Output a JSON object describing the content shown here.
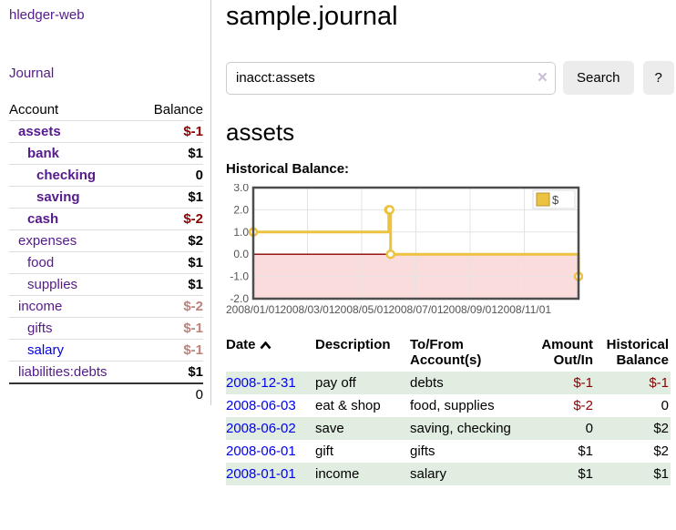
{
  "app": {
    "brand": "hledger-web",
    "nav_journal": "Journal"
  },
  "sidebar": {
    "accounts_header": {
      "account": "Account",
      "balance": "Balance"
    },
    "accounts": [
      {
        "name": "assets",
        "balance": "$-1",
        "depth": 1,
        "bold": true,
        "balance_style": "neg-strong",
        "link_style": "purple"
      },
      {
        "name": "bank",
        "balance": "$1",
        "depth": 2,
        "bold": true,
        "balance_style": "plain",
        "link_style": "purple"
      },
      {
        "name": "checking",
        "balance": "0",
        "depth": 3,
        "bold": true,
        "balance_style": "plain",
        "link_style": "purple"
      },
      {
        "name": "saving",
        "balance": "$1",
        "depth": 3,
        "bold": true,
        "balance_style": "plain",
        "link_style": "purple"
      },
      {
        "name": "cash",
        "balance": "$-2",
        "depth": 2,
        "bold": true,
        "balance_style": "neg-strong",
        "link_style": "purple"
      },
      {
        "name": "expenses",
        "balance": "$2",
        "depth": 1,
        "bold": false,
        "balance_style": "plain",
        "link_style": "purple"
      },
      {
        "name": "food",
        "balance": "$1",
        "depth": 2,
        "bold": false,
        "balance_style": "plain",
        "link_style": "purple"
      },
      {
        "name": "supplies",
        "balance": "$1",
        "depth": 2,
        "bold": false,
        "balance_style": "plain",
        "link_style": "purple"
      },
      {
        "name": "income",
        "balance": "$-2",
        "depth": 1,
        "bold": false,
        "balance_style": "neg-muted",
        "link_style": "purple"
      },
      {
        "name": "gifts",
        "balance": "$-1",
        "depth": 2,
        "bold": false,
        "balance_style": "neg-muted",
        "link_style": "purple"
      },
      {
        "name": "salary",
        "balance": "$-1",
        "depth": 2,
        "bold": false,
        "balance_style": "neg-muted",
        "link_style": "blue"
      },
      {
        "name": "liabilities:debts",
        "balance": "$1",
        "depth": 1,
        "bold": false,
        "balance_style": "plain",
        "link_style": "purple"
      }
    ],
    "total": "0"
  },
  "header": {
    "title": "sample.journal"
  },
  "search": {
    "value": "inacct:assets",
    "clear_icon": "×",
    "button": "Search",
    "help_button": "?"
  },
  "register": {
    "heading": "assets",
    "chart_label": "Historical Balance:"
  },
  "chart_data": {
    "type": "line",
    "title": "Historical Balance",
    "step": true,
    "series": [
      {
        "name": "$",
        "color": "#edc240",
        "points": [
          [
            "2008-01-01",
            1
          ],
          [
            "2008-06-01",
            2
          ],
          [
            "2008-06-02",
            2
          ],
          [
            "2008-06-03",
            0
          ],
          [
            "2008-12-31",
            -1
          ]
        ]
      }
    ],
    "xlim": [
      "2008-01-01",
      "2009-01-01"
    ],
    "ylim": [
      -2,
      3
    ],
    "yticks": [
      {
        "v": 3,
        "label": "3.0"
      },
      {
        "v": 2,
        "label": "2.0"
      },
      {
        "v": 1,
        "label": "1.0"
      },
      {
        "v": 0,
        "label": "0.0"
      },
      {
        "v": -1,
        "label": "-1.0"
      },
      {
        "v": -2,
        "label": "-2.0"
      }
    ],
    "xticks": [
      {
        "date": "2008-01-01",
        "label": "2008/01/01"
      },
      {
        "date": "2008-03-01",
        "label": "2008/03/01"
      },
      {
        "date": "2008-05-01",
        "label": "2008/05/01"
      },
      {
        "date": "2008-07-01",
        "label": "2008/07/01"
      },
      {
        "date": "2008-09-01",
        "label": "2008/09/01"
      },
      {
        "date": "2008-11-01",
        "label": "2008/11/01"
      }
    ],
    "grid": true,
    "legend_position": "top-right",
    "legend": {
      "label": "$",
      "swatch_color": "#edc240"
    },
    "colors": {
      "zero_line": "#8b0000",
      "negative_region": "#fbdcdc",
      "gridline": "#e3e3e3",
      "border": "#4d4d4d",
      "tick_text": "#545454",
      "marker_fill": "#ffffff"
    }
  },
  "table": {
    "headers": {
      "date": "Date",
      "description": "Description",
      "accounts": "To/From Account(s)",
      "amount": "Amount Out/In",
      "balance": "Historical Balance"
    },
    "rows": [
      {
        "date": "2008-12-31",
        "description": "pay off",
        "accounts": "debts",
        "amount": "$-1",
        "balance": "$-1"
      },
      {
        "date": "2008-06-03",
        "description": "eat & shop",
        "accounts": "food, supplies",
        "amount": "$-2",
        "balance": "0"
      },
      {
        "date": "2008-06-02",
        "description": "save",
        "accounts": "saving, checking",
        "amount": "0",
        "balance": "$2"
      },
      {
        "date": "2008-06-01",
        "description": "gift",
        "accounts": "gifts",
        "amount": "$1",
        "balance": "$2"
      },
      {
        "date": "2008-01-01",
        "description": "income",
        "accounts": "salary",
        "amount": "$1",
        "balance": "$1"
      }
    ]
  }
}
